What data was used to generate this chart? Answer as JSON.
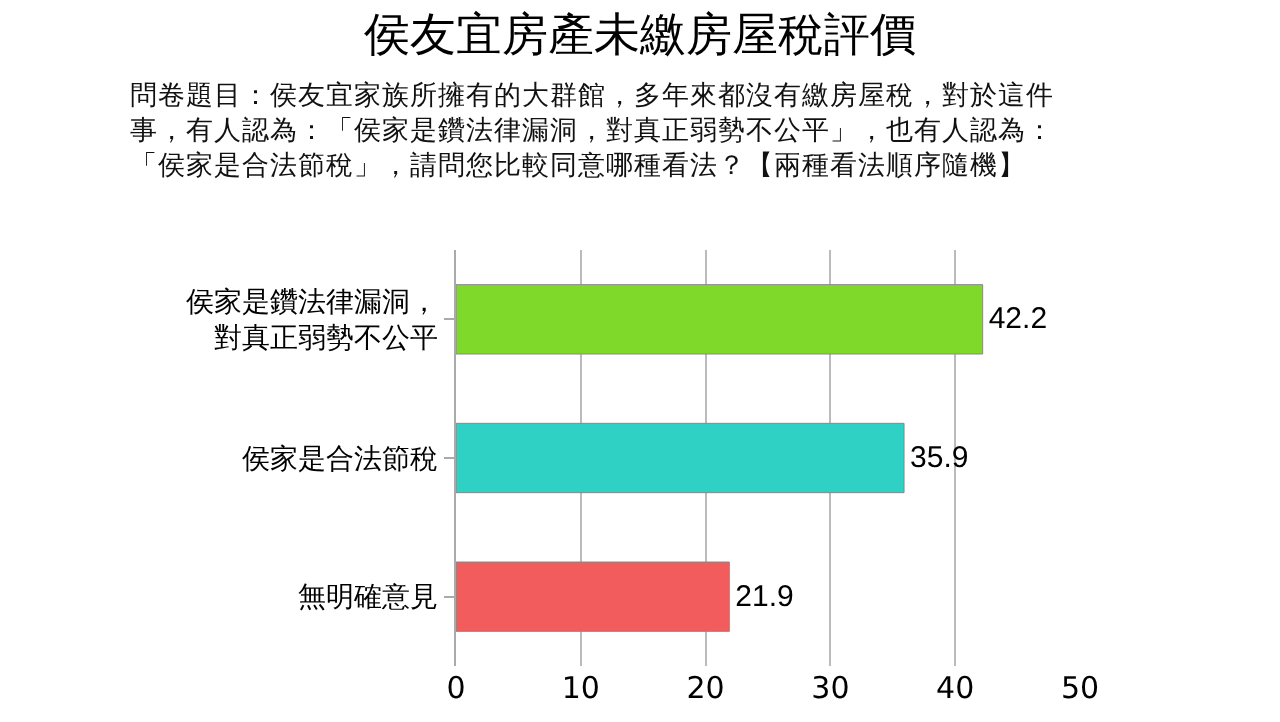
{
  "chart_data": {
    "type": "bar",
    "orientation": "horizontal",
    "title": "侯友宜房產未繳房屋稅評價",
    "subtitle": "問卷題目：侯友宜家族所擁有的大群館，多年來都沒有繳房屋稅，對於這件事，有人認為：「侯家是鑽法律漏洞，對真正弱勢不公平」，也有人認為：「侯家是合法節稅」，請問您比較同意哪種看法？【兩種看法順序隨機】",
    "categories": [
      "侯家是鑽法律漏洞，對真正弱勢不公平",
      "侯家是合法節稅",
      "無明確意見"
    ],
    "values": [
      42.2,
      35.9,
      21.9
    ],
    "colors": [
      "#7ed92a",
      "#2ed1c4",
      "#f25c5c"
    ],
    "xlim": [
      0,
      50
    ],
    "xticks": [
      0,
      10,
      20,
      30,
      40,
      50
    ],
    "grid": "x",
    "data_labels": true
  }
}
